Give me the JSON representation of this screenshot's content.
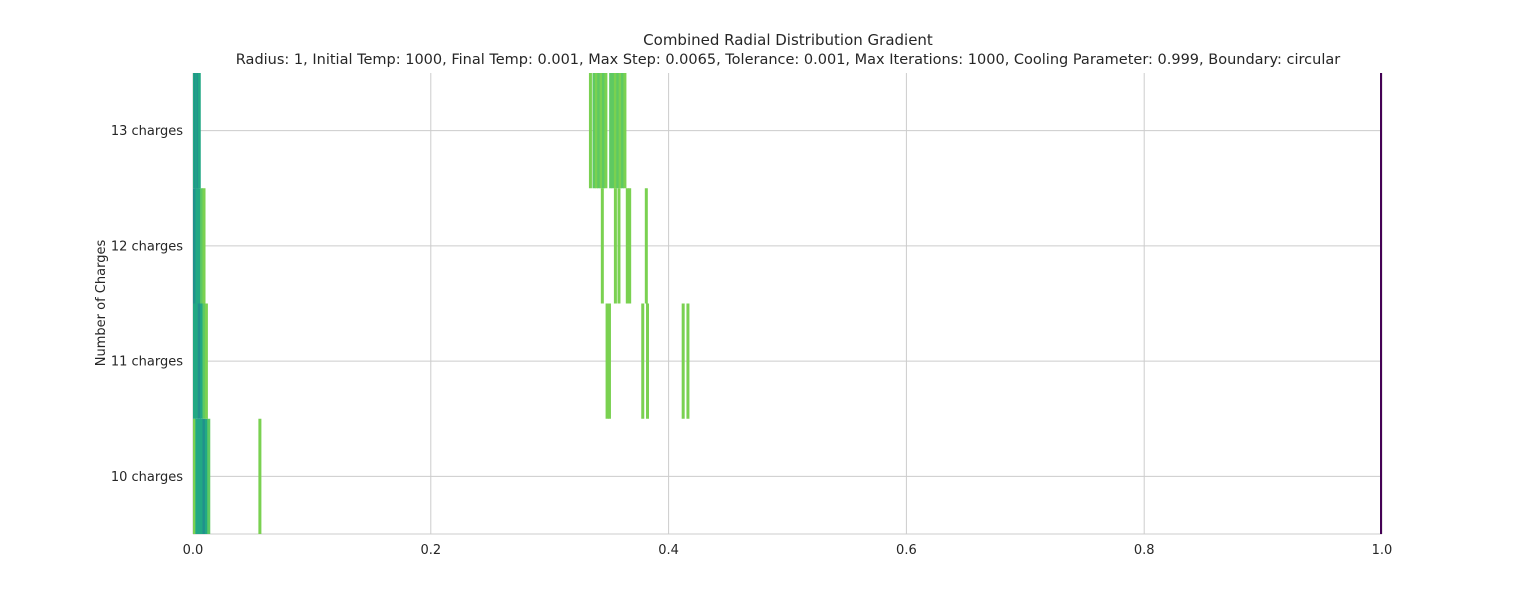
{
  "chart_data": {
    "type": "bar",
    "title": "Combined Radial Distribution Gradient",
    "subtitle": "Radius: 1, Initial Temp: 1000, Final Temp: 0.001, Max Step: 0.0065, Tolerance: 0.001, Max Iterations: 1000, Cooling Parameter: 0.999, Boundary: circular",
    "xlabel": "",
    "ylabel": "Number of Charges",
    "xlim": [
      0,
      1
    ],
    "xticks": [
      "0.0",
      "0.2",
      "0.4",
      "0.6",
      "0.8",
      "1.0"
    ],
    "categories": [
      "10 charges",
      "11 charges",
      "12 charges",
      "13 charges"
    ],
    "grid": true,
    "colors": {
      "light_green": "#7ad151",
      "mid_green": "#5ec962",
      "teal": "#22a884",
      "dark_teal": "#21918c",
      "purple": "#440154"
    },
    "series": [
      {
        "category": "10 charges",
        "radial_positions": [
          0.0,
          0.002,
          0.004,
          0.006,
          0.008,
          0.01,
          0.012,
          0.055
        ],
        "colors": [
          "#7ad151",
          "#22a884",
          "#22a884",
          "#22a884",
          "#21918c",
          "#22a884",
          "#5ec962",
          "#7ad151"
        ]
      },
      {
        "category": "11 charges",
        "radial_positions": [
          0.0,
          0.002,
          0.004,
          0.006,
          0.008,
          0.01,
          0.347,
          0.349,
          0.377,
          0.381,
          0.411,
          0.415
        ],
        "colors": [
          "#22a884",
          "#22a884",
          "#21918c",
          "#22a884",
          "#5ec962",
          "#7ad151",
          "#7ad151",
          "#7ad151",
          "#7ad151",
          "#7ad151",
          "#7ad151",
          "#7ad151"
        ]
      },
      {
        "category": "12 charges",
        "radial_positions": [
          0.0,
          0.002,
          0.004,
          0.006,
          0.008,
          0.343,
          0.354,
          0.357,
          0.364,
          0.366,
          0.38
        ],
        "colors": [
          "#21918c",
          "#22a884",
          "#22a884",
          "#5ec962",
          "#7ad151",
          "#7ad151",
          "#7ad151",
          "#7ad151",
          "#7ad151",
          "#7ad151",
          "#7ad151"
        ]
      },
      {
        "category": "13 charges",
        "radial_positions": [
          0.0,
          0.001,
          0.002,
          0.003,
          0.004,
          0.333,
          0.336,
          0.338,
          0.34,
          0.342,
          0.344,
          0.346,
          0.35,
          0.352,
          0.354,
          0.356,
          0.358,
          0.36,
          0.362
        ],
        "colors": [
          "#22a884",
          "#21918c",
          "#22a884",
          "#21918c",
          "#22a884",
          "#7ad151",
          "#5ec962",
          "#7ad151",
          "#5ec962",
          "#7ad151",
          "#5ec962",
          "#7ad151",
          "#5ec962",
          "#5ec962",
          "#7ad151",
          "#5ec962",
          "#7ad151",
          "#5ec962",
          "#7ad151"
        ]
      }
    ],
    "boundary_line": {
      "x": 1.0,
      "color": "#440154"
    }
  }
}
